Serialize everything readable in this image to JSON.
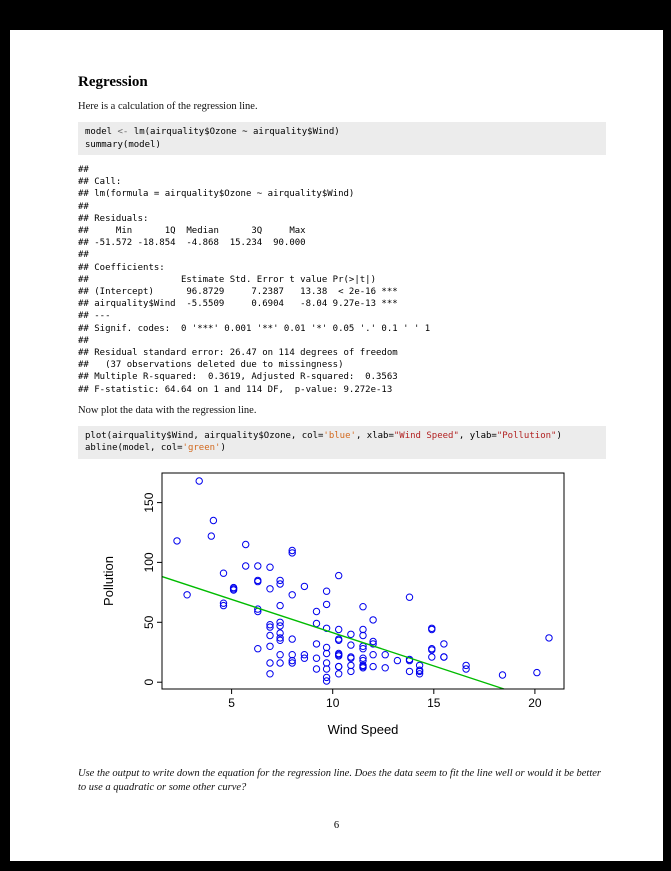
{
  "doc": {
    "heading": "Regression",
    "intro": "Here is a calculation of the regression line.",
    "plot_intro": "Now plot the data with the regression line.",
    "question": "Use the output to write down the equation for the regression line. Does the data seem to fit the line well or would it be better to use a quadratic or some other curve?",
    "page_number": "6"
  },
  "code1": {
    "lines": [
      [
        {
          "t": "model "
        },
        {
          "t": "<-",
          "c": "op"
        },
        {
          "t": " lm(airquality$Ozone ~ airquality$Wind)"
        }
      ],
      [
        {
          "t": "summary(model)"
        }
      ]
    ]
  },
  "code2": {
    "lines": [
      [
        {
          "t": "plot(airquality$Wind, airquality$Ozone, col="
        },
        {
          "t": "'blue'",
          "c": "str1"
        },
        {
          "t": ", xlab="
        },
        {
          "t": "\"Wind Speed\"",
          "c": "str2"
        },
        {
          "t": ", ylab="
        },
        {
          "t": "\"Pollution\"",
          "c": "str2"
        },
        {
          "t": ")"
        }
      ],
      [
        {
          "t": "abline(model, col="
        },
        {
          "t": "'green'",
          "c": "str1"
        },
        {
          "t": ")"
        }
      ]
    ]
  },
  "output": {
    "lines": [
      "## ",
      "## Call:",
      "## lm(formula = airquality$Ozone ~ airquality$Wind)",
      "## ",
      "## Residuals:",
      "##     Min      1Q  Median      3Q     Max ",
      "## -51.572 -18.854  -4.868  15.234  90.000 ",
      "## ",
      "## Coefficients:",
      "##                 Estimate Std. Error t value Pr(>|t|)    ",
      "## (Intercept)      96.8729     7.2387   13.38  < 2e-16 ***",
      "## airquality$Wind  -5.5509     0.6904   -8.04 9.27e-13 ***",
      "## ---",
      "## Signif. codes:  0 '***' 0.001 '**' 0.01 '*' 0.05 '.' 0.1 ' ' 1",
      "## ",
      "## Residual standard error: 26.47 on 114 degrees of freedom",
      "##   (37 observations deleted due to missingness)",
      "## Multiple R-squared:  0.3619, Adjusted R-squared:  0.3563",
      "## F-statistic: 64.64 on 1 and 114 DF,  p-value: 9.272e-13"
    ]
  },
  "chart_data": {
    "type": "scatter",
    "title": "",
    "xlabel": "Wind Speed",
    "ylabel": "Pollution",
    "xlim": [
      1.56,
      21.44
    ],
    "ylim": [
      -5.68,
      174.68
    ],
    "xticks": [
      5,
      10,
      15,
      20
    ],
    "yticks": [
      0,
      50,
      100,
      150
    ],
    "grid": false,
    "point_color": "#0000EE",
    "regression_line": {
      "intercept": 96.8729,
      "slope": -5.5509,
      "color": "#00BB00"
    },
    "x": [
      7.4,
      8,
      12.6,
      11.5,
      14.9,
      8.6,
      13.8,
      20.1,
      6.9,
      9.7,
      9.2,
      10.9,
      13.2,
      11.5,
      12,
      18.4,
      11.5,
      9.7,
      9.7,
      16.6,
      9.7,
      12,
      12,
      14.9,
      5.7,
      7.4,
      9.7,
      13.8,
      11.5,
      8,
      14.9,
      20.7,
      9.2,
      11.5,
      10.3,
      4.1,
      9.2,
      9.2,
      4.6,
      10.9,
      5.1,
      6.3,
      5.7,
      7.4,
      14.3,
      14.9,
      14.3,
      6.9,
      10.3,
      6.3,
      5.1,
      11.5,
      6.9,
      8.6,
      8,
      8.6,
      12,
      7.4,
      7.4,
      7.4,
      9.2,
      6.9,
      13.8,
      7.4,
      6.9,
      7.4,
      4.6,
      4,
      10.3,
      8,
      11.5,
      11.5,
      9.7,
      10.3,
      6.3,
      7.4,
      10.9,
      10.3,
      15.5,
      14.3,
      9.7,
      3.4,
      8,
      9.7,
      2.3,
      6.3,
      6.3,
      6.9,
      5.1,
      2.8,
      4.6,
      7.4,
      15.5,
      10.9,
      10.3,
      10.9,
      9.7,
      14.9,
      15.5,
      6.3,
      10.9,
      11.5,
      6.9,
      13.8,
      10.3,
      10.3,
      8,
      12,
      12.6,
      10.3,
      10.3,
      16.6,
      6.9,
      14.3,
      8,
      11.5
    ],
    "y": [
      41,
      36,
      12,
      18,
      28,
      23,
      19,
      8,
      7,
      16,
      11,
      14,
      18,
      14,
      34,
      6,
      30,
      11,
      1,
      11,
      4,
      32,
      23,
      45,
      115,
      37,
      29,
      71,
      39,
      23,
      21,
      37,
      20,
      12,
      13,
      135,
      49,
      32,
      64,
      40,
      77,
      97,
      97,
      85,
      10,
      27,
      7,
      48,
      35,
      61,
      79,
      63,
      16,
      80,
      108,
      20,
      52,
      82,
      50,
      64,
      59,
      39,
      9,
      16,
      78,
      35,
      66,
      122,
      89,
      110,
      44,
      28,
      65,
      22,
      59,
      23,
      31,
      44,
      21,
      9,
      45,
      168,
      73,
      76,
      118,
      84,
      85,
      96,
      78,
      73,
      91,
      47,
      32,
      20,
      23,
      21,
      24,
      44,
      21,
      28,
      9,
      13,
      46,
      18,
      13,
      24,
      16,
      13,
      23,
      36,
      7,
      14,
      30,
      14,
      18,
      20
    ]
  }
}
